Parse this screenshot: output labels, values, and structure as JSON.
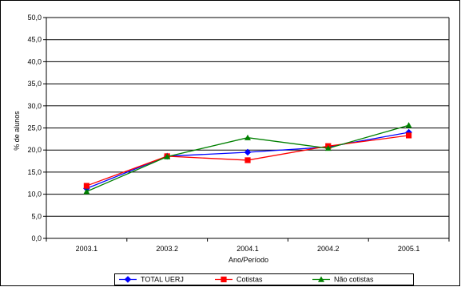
{
  "chart_data": {
    "type": "line",
    "title": "",
    "xlabel": "Ano/Período",
    "ylabel": "% de alunos",
    "categories": [
      "2003.1",
      "2003.2",
      "2004.1",
      "2004.2",
      "2005.1"
    ],
    "ylim": [
      0,
      50
    ],
    "yticks": [
      "0,0",
      "5,0",
      "10,0",
      "15,0",
      "20,0",
      "25,0",
      "30,0",
      "35,0",
      "40,0",
      "45,0",
      "50,0"
    ],
    "grid": true,
    "legend_position": "bottom",
    "series": [
      {
        "name": "TOTAL UERJ",
        "color": "#0000ff",
        "marker": "diamond",
        "values": [
          11.3,
          18.6,
          19.5,
          20.7,
          24.0
        ]
      },
      {
        "name": "Cotistas",
        "color": "#ff0000",
        "marker": "square",
        "values": [
          11.9,
          18.6,
          17.7,
          20.9,
          23.3
        ]
      },
      {
        "name": "Não cotistas",
        "color": "#008000",
        "marker": "triangle",
        "values": [
          10.6,
          18.5,
          22.8,
          20.4,
          25.6
        ]
      }
    ]
  }
}
